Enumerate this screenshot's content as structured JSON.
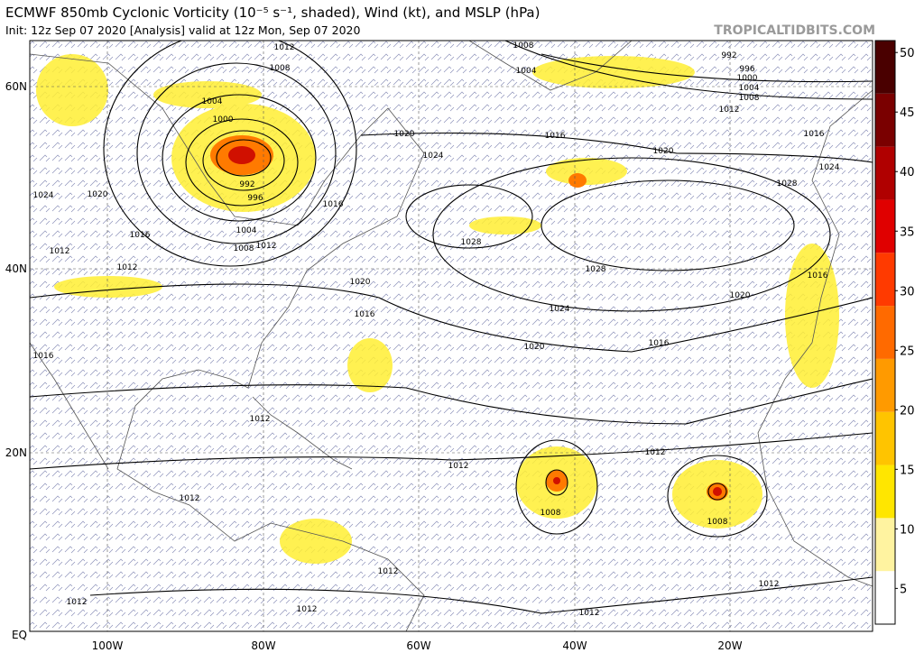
{
  "header": {
    "title": "ECMWF 850mb Cyclonic Vorticity (10⁻⁵ s⁻¹, shaded), Wind (kt), and MSLP (hPa)",
    "subtitle": "Init: 12z Sep 07 2020   [Analysis]   valid at 12z Mon, Sep 07 2020",
    "site": "TROPICALTIDBITS.COM"
  },
  "map": {
    "lat_labels": [
      "60N",
      "40N",
      "20N",
      "EQ"
    ],
    "lon_labels": [
      "100W",
      "80W",
      "60W",
      "40W",
      "20W"
    ],
    "isobar_labels": [
      "1012",
      "1008",
      "1004",
      "1000",
      "992",
      "996",
      "1004",
      "1008",
      "1012",
      "1016",
      "1020",
      "1024",
      "1020",
      "1024",
      "1016",
      "1012",
      "1012",
      "1016",
      "1020",
      "1016",
      "1028",
      "1028",
      "1028",
      "1024",
      "1020",
      "1016",
      "1020",
      "1016",
      "1020",
      "1012",
      "992",
      "996",
      "1000",
      "1004",
      "1008",
      "1008",
      "1004",
      "1016",
      "1024",
      "1016",
      "1012",
      "1012",
      "1012",
      "1012",
      "1008",
      "1008",
      "1012",
      "1012",
      "1012",
      "1012",
      "1012"
    ]
  },
  "colorbar": {
    "lim": [
      2,
      51
    ],
    "ticks": [
      5,
      10,
      15,
      20,
      25,
      30,
      35,
      40,
      45,
      50
    ],
    "colors": [
      "#ffffff",
      "#fff3a0",
      "#ffe600",
      "#ffc400",
      "#ff9a00",
      "#ff6a00",
      "#ff3a00",
      "#e00000",
      "#b00000",
      "#7a0000",
      "#4a0000"
    ]
  }
}
